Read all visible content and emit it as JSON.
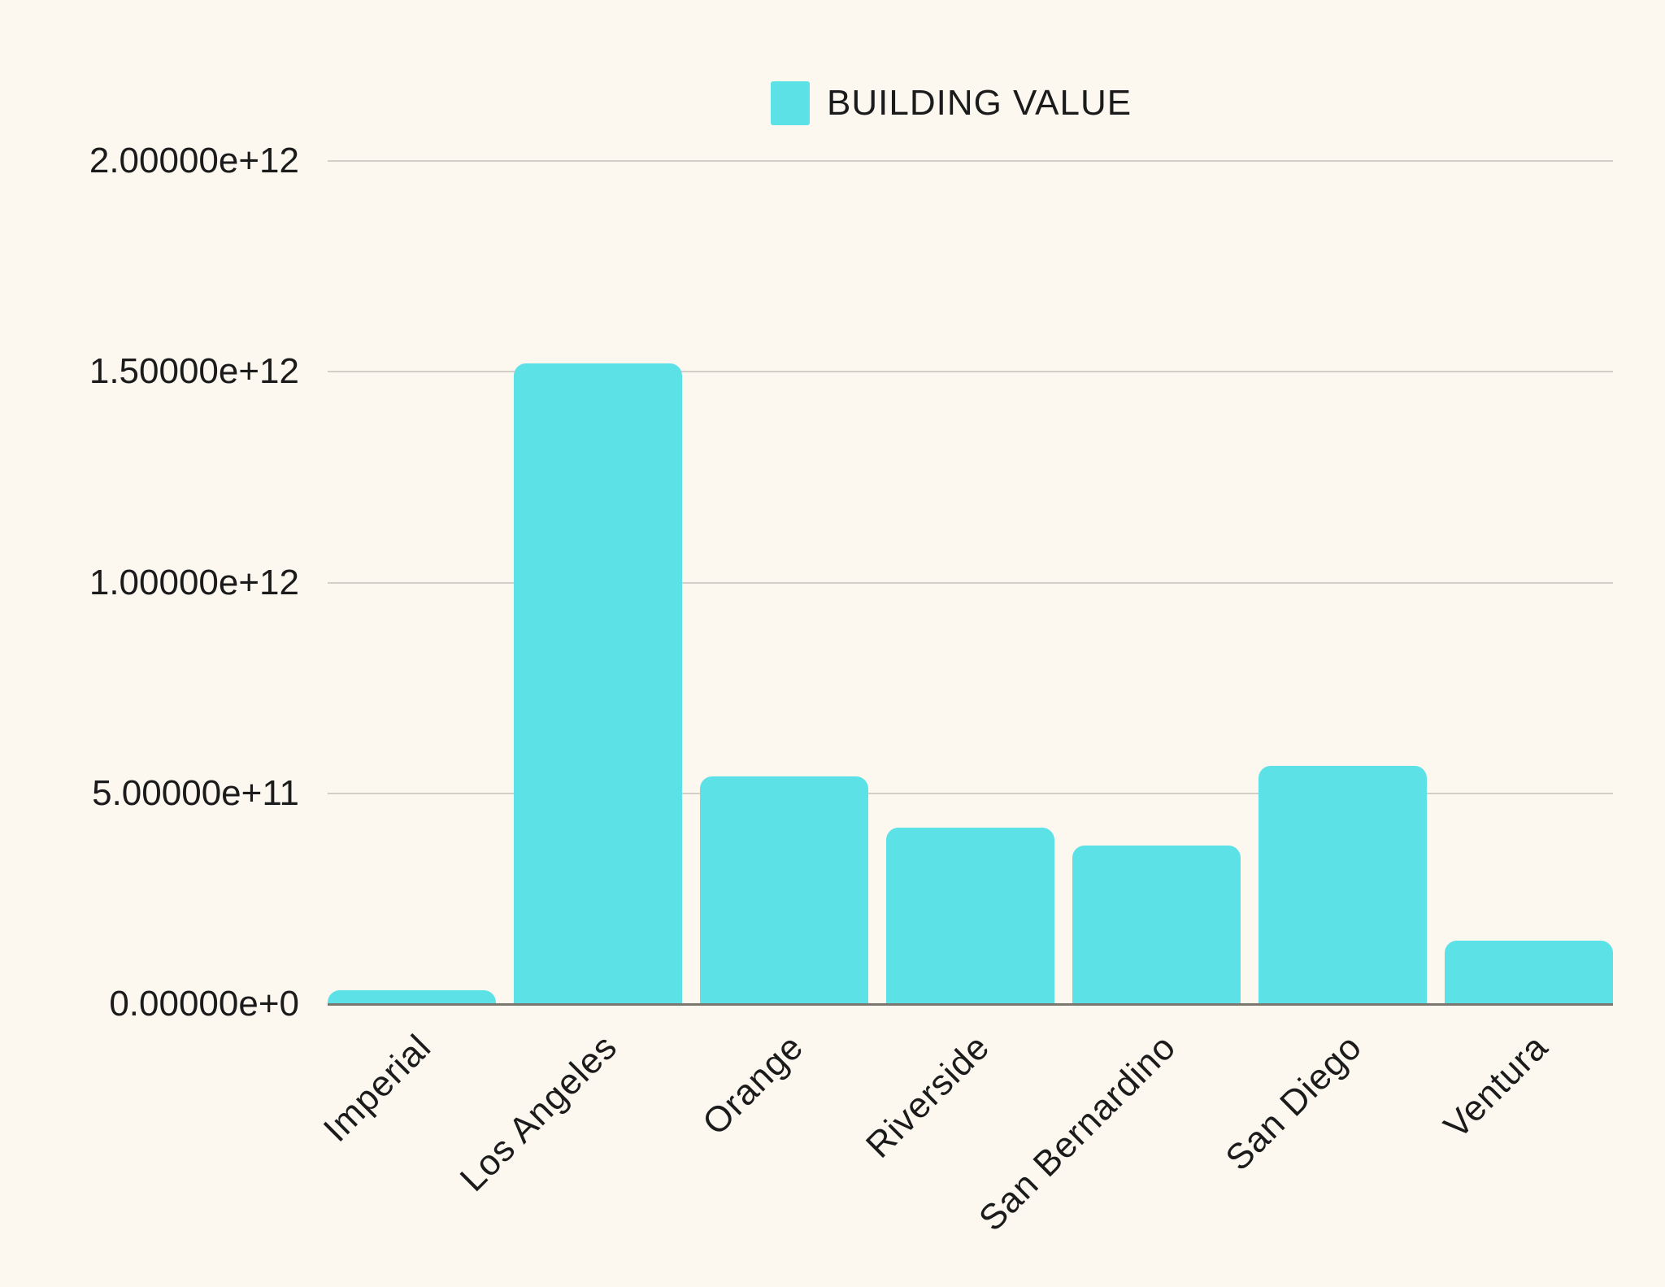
{
  "colors": {
    "background": "#FCF8F0",
    "bar": "#5CE1E6",
    "gridline": "#D2CFC9",
    "zero_axis": "#7B766E",
    "text": "#1B1B1B"
  },
  "legend": {
    "label": "BUILDING VALUE"
  },
  "chart_data": {
    "type": "bar",
    "title": "",
    "legend_entries": [
      "BUILDING VALUE"
    ],
    "legend_position": "top-center",
    "grid": true,
    "categories": [
      "Imperial",
      "Los Angeles",
      "Orange",
      "Riverside",
      "San Bernardino",
      "San Diego",
      "Ventura"
    ],
    "series": [
      {
        "name": "BUILDING VALUE",
        "values": [
          33000000000.0,
          1520000000000.0,
          540000000000.0,
          418000000000.0,
          376000000000.0,
          566000000000.0,
          150000000000.0
        ]
      }
    ],
    "xlabel": "",
    "ylabel": "",
    "ylim": [
      0,
      2000000000000.0
    ],
    "yticks": [
      {
        "value": 0,
        "label": "0.00000e+0"
      },
      {
        "value": 500000000000.0,
        "label": "5.00000e+11"
      },
      {
        "value": 1000000000000.0,
        "label": "1.00000e+12"
      },
      {
        "value": 1500000000000.0,
        "label": "1.50000e+12"
      },
      {
        "value": 2000000000000.0,
        "label": "2.00000e+12"
      }
    ]
  }
}
